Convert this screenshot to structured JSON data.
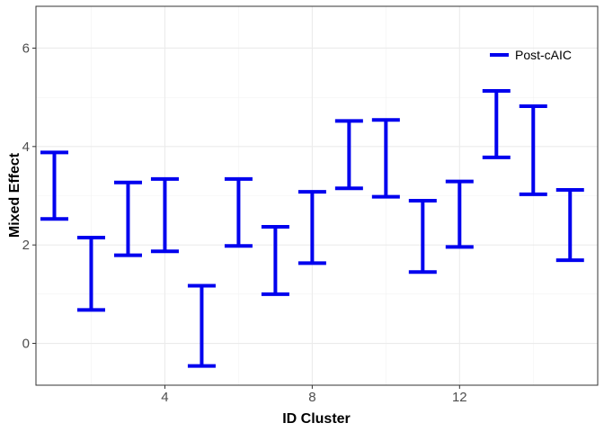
{
  "chart_data": {
    "type": "errorbar",
    "xlabel": "ID Cluster",
    "ylabel": "Mixed Effect",
    "xlim": [
      0.5,
      15.75
    ],
    "ylim": [
      -0.85,
      6.85
    ],
    "x_ticks": [
      4,
      8,
      12
    ],
    "x_tick_labels": [
      "4",
      "8",
      "12"
    ],
    "y_ticks": [
      0,
      2,
      4,
      6
    ],
    "y_tick_labels": [
      "0",
      "2",
      "4",
      "6"
    ],
    "grid": true,
    "legend": {
      "placement": "top-right",
      "entries": [
        "Post-cAIC"
      ]
    },
    "series": [
      {
        "name": "Post-cAIC",
        "color": "#0000ee",
        "x": [
          1,
          2,
          3,
          4,
          5,
          6,
          7,
          8,
          9,
          10,
          11,
          12,
          13,
          14,
          15
        ],
        "lower": [
          2.53,
          0.68,
          1.79,
          1.87,
          -0.46,
          1.98,
          1.0,
          1.63,
          3.15,
          2.98,
          1.45,
          1.96,
          3.78,
          3.03,
          1.69
        ],
        "upper": [
          3.88,
          2.15,
          3.27,
          3.34,
          1.17,
          3.34,
          2.37,
          3.08,
          4.52,
          4.54,
          2.9,
          3.29,
          5.13,
          4.82,
          3.12
        ]
      }
    ]
  }
}
